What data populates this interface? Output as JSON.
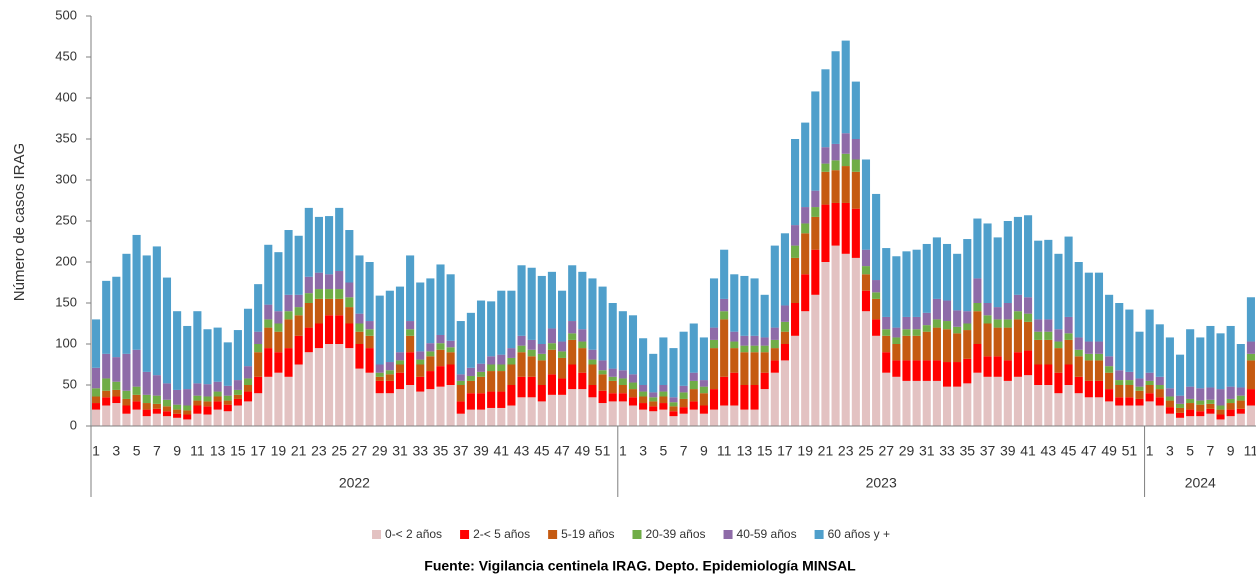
{
  "chart_data": {
    "type": "stacked_bar",
    "y_label": "Número de casos IRAG",
    "source": "Fuente: Vigilancia centinela IRAG. Depto. Epidemiología MINSAL",
    "ylim": [
      0,
      500
    ],
    "yticks": [
      0,
      50,
      100,
      150,
      200,
      250,
      300,
      350,
      400,
      450,
      500
    ],
    "year_labels": [
      "2022",
      "2023",
      "2024"
    ],
    "categories": [
      "1",
      null,
      "3",
      null,
      "5",
      null,
      "7",
      null,
      "9",
      null,
      "11",
      null,
      "13",
      null,
      "15",
      null,
      "17",
      null,
      "19",
      null,
      "21",
      null,
      "23",
      null,
      "25",
      null,
      "27",
      null,
      "29",
      null,
      "31",
      null,
      "33",
      null,
      "35",
      null,
      "37",
      null,
      "39",
      null,
      "41",
      null,
      "43",
      null,
      "45",
      null,
      "47",
      null,
      "49",
      null,
      "51",
      null,
      "1",
      null,
      "3",
      null,
      "5",
      null,
      "7",
      null,
      "9",
      null,
      "11",
      null,
      "13",
      null,
      "15",
      null,
      "17",
      null,
      "19",
      null,
      "21",
      null,
      "23",
      null,
      "25",
      null,
      "27",
      null,
      "29",
      null,
      "31",
      null,
      "33",
      null,
      "35",
      null,
      "37",
      null,
      "39",
      null,
      "41",
      null,
      "43",
      null,
      "45",
      null,
      "47",
      null,
      "49",
      null,
      "51",
      null,
      "1",
      null,
      "3",
      null,
      "5",
      null,
      "7",
      null,
      "9",
      null,
      "11"
    ],
    "series": [
      {
        "name": "0-< 2 años",
        "color": "#e3c2c2",
        "values": [
          20,
          25,
          28,
          15,
          20,
          12,
          15,
          12,
          10,
          8,
          15,
          14,
          20,
          18,
          25,
          30,
          40,
          60,
          65,
          60,
          75,
          90,
          95,
          100,
          100,
          95,
          70,
          65,
          40,
          40,
          45,
          50,
          42,
          45,
          48,
          50,
          15,
          20,
          20,
          22,
          22,
          25,
          35,
          35,
          30,
          38,
          38,
          45,
          45,
          35,
          28,
          30,
          30,
          25,
          20,
          18,
          20,
          12,
          15,
          20,
          15,
          20,
          25,
          25,
          20,
          20,
          45,
          65,
          80,
          110,
          140,
          160,
          200,
          220,
          210,
          205,
          140,
          110,
          65,
          60,
          55,
          55,
          55,
          55,
          48,
          48,
          52,
          65,
          60,
          60,
          55,
          60,
          62,
          50,
          50,
          40,
          50,
          40,
          35,
          35,
          30,
          25,
          25,
          25,
          30,
          25,
          15,
          10,
          12,
          12,
          15,
          8,
          12,
          15,
          25
        ]
      },
      {
        "name": "2-< 5 años",
        "color": "#ff0000",
        "values": [
          8,
          10,
          8,
          10,
          10,
          8,
          6,
          6,
          5,
          6,
          10,
          10,
          10,
          8,
          8,
          12,
          20,
          35,
          25,
          35,
          35,
          30,
          30,
          35,
          35,
          30,
          30,
          30,
          15,
          15,
          20,
          40,
          18,
          22,
          25,
          25,
          15,
          20,
          20,
          20,
          20,
          25,
          25,
          25,
          20,
          25,
          20,
          30,
          20,
          15,
          15,
          10,
          10,
          10,
          8,
          6,
          8,
          6,
          8,
          10,
          10,
          25,
          35,
          40,
          30,
          30,
          20,
          15,
          20,
          40,
          45,
          55,
          70,
          52,
          62,
          60,
          25,
          20,
          25,
          20,
          25,
          25,
          25,
          25,
          30,
          30,
          30,
          35,
          25,
          25,
          25,
          30,
          30,
          25,
          25,
          25,
          25,
          20,
          20,
          20,
          15,
          10,
          10,
          8,
          10,
          10,
          8,
          6,
          8,
          6,
          6,
          6,
          8,
          6,
          20
        ]
      },
      {
        "name": "5-19 años",
        "color": "#c55a11",
        "values": [
          8,
          8,
          8,
          8,
          8,
          8,
          6,
          6,
          5,
          5,
          6,
          6,
          6,
          5,
          5,
          8,
          30,
          25,
          25,
          35,
          25,
          30,
          30,
          20,
          20,
          20,
          15,
          15,
          5,
          8,
          10,
          20,
          15,
          18,
          20,
          15,
          20,
          15,
          20,
          25,
          25,
          25,
          30,
          25,
          30,
          30,
          25,
          30,
          30,
          25,
          20,
          15,
          10,
          10,
          8,
          6,
          8,
          6,
          10,
          15,
          15,
          50,
          70,
          30,
          40,
          40,
          25,
          15,
          15,
          55,
          50,
          40,
          40,
          40,
          45,
          45,
          20,
          25,
          20,
          20,
          30,
          30,
          35,
          40,
          40,
          35,
          35,
          40,
          40,
          35,
          40,
          40,
          35,
          30,
          30,
          30,
          30,
          25,
          25,
          25,
          20,
          15,
          15,
          10,
          10,
          10,
          8,
          6,
          8,
          8,
          6,
          6,
          8,
          10,
          35
        ]
      },
      {
        "name": "20-39 años",
        "color": "#70ad47",
        "values": [
          10,
          15,
          10,
          10,
          10,
          10,
          10,
          8,
          6,
          6,
          6,
          6,
          6,
          6,
          6,
          8,
          10,
          10,
          10,
          10,
          10,
          12,
          12,
          12,
          12,
          12,
          10,
          8,
          5,
          5,
          5,
          8,
          6,
          6,
          8,
          6,
          5,
          6,
          6,
          8,
          8,
          8,
          8,
          8,
          8,
          8,
          8,
          8,
          8,
          6,
          5,
          5,
          8,
          8,
          6,
          5,
          6,
          5,
          8,
          10,
          8,
          10,
          10,
          8,
          8,
          8,
          8,
          10,
          12,
          15,
          12,
          12,
          10,
          12,
          15,
          15,
          10,
          8,
          8,
          8,
          8,
          8,
          8,
          10,
          10,
          8,
          8,
          10,
          10,
          10,
          10,
          10,
          10,
          10,
          10,
          8,
          8,
          8,
          8,
          8,
          8,
          6,
          6,
          5,
          5,
          5,
          5,
          5,
          5,
          5,
          5,
          5,
          5,
          6,
          8
        ]
      },
      {
        "name": "40-59 años",
        "color": "#8e6ba8",
        "values": [
          25,
          30,
          30,
          45,
          45,
          28,
          25,
          20,
          18,
          20,
          15,
          15,
          12,
          12,
          12,
          15,
          15,
          18,
          15,
          20,
          15,
          20,
          20,
          18,
          22,
          18,
          12,
          10,
          10,
          10,
          10,
          10,
          10,
          10,
          10,
          8,
          8,
          10,
          10,
          10,
          12,
          12,
          12,
          12,
          12,
          18,
          12,
          15,
          15,
          12,
          12,
          10,
          10,
          10,
          8,
          6,
          8,
          6,
          8,
          10,
          8,
          15,
          15,
          12,
          12,
          12,
          10,
          15,
          20,
          25,
          20,
          20,
          20,
          20,
          25,
          25,
          20,
          15,
          15,
          12,
          15,
          15,
          15,
          25,
          25,
          20,
          15,
          30,
          15,
          15,
          20,
          20,
          20,
          15,
          15,
          15,
          20,
          15,
          15,
          15,
          12,
          12,
          10,
          10,
          10,
          10,
          10,
          10,
          15,
          15,
          15,
          20,
          15,
          10,
          15
        ]
      },
      {
        "name": "60 años y +",
        "color": "#4f9fcb",
        "values": [
          59,
          89,
          98,
          122,
          140,
          142,
          157,
          129,
          96,
          77,
          88,
          67,
          66,
          53,
          61,
          70,
          58,
          73,
          72,
          79,
          72,
          84,
          68,
          71,
          77,
          64,
          71,
          72,
          84,
          87,
          80,
          80,
          84,
          79,
          86,
          81,
          65,
          67,
          77,
          67,
          78,
          70,
          86,
          88,
          83,
          69,
          62,
          68,
          70,
          87,
          90,
          80,
          72,
          72,
          57,
          47,
          58,
          60,
          66,
          60,
          52,
          60,
          60,
          70,
          73,
          70,
          52,
          100,
          88,
          105,
          103,
          121,
          95,
          113,
          113,
          70,
          110,
          105,
          84,
          87,
          80,
          82,
          84,
          75,
          69,
          69,
          88,
          73,
          97,
          85,
          100,
          95,
          100,
          96,
          97,
          92,
          98,
          92,
          84,
          84,
          75,
          82,
          76,
          57,
          77,
          64,
          62,
          50,
          70,
          62,
          75,
          68,
          74,
          53,
          54
        ]
      }
    ]
  }
}
